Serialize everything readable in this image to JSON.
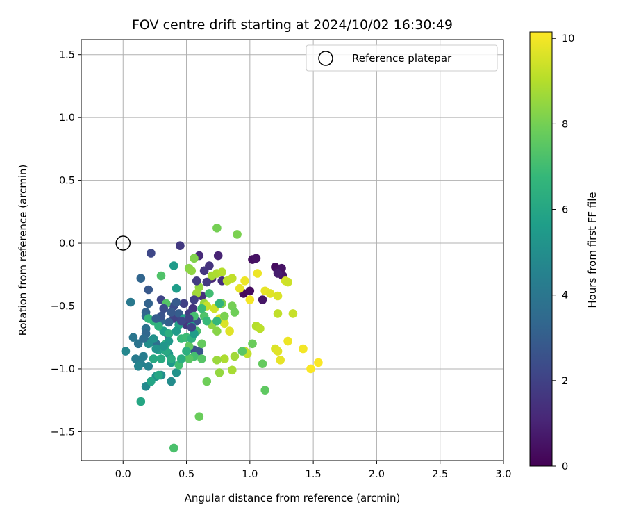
{
  "chart_data": {
    "type": "scatter",
    "title": "FOV centre drift starting at 2024/10/02 16:30:49",
    "xlabel": "Angular distance from reference (arcmin)",
    "ylabel": "Rotation from reference (arcmin)",
    "xlim": [
      -0.33,
      3.0
    ],
    "ylim": [
      -1.73,
      1.62
    ],
    "xticks": [
      0.0,
      0.5,
      1.0,
      1.5,
      2.0,
      2.5,
      3.0
    ],
    "xtick_labels": [
      "0.0",
      "0.5",
      "1.0",
      "1.5",
      "2.0",
      "2.5",
      "3.0"
    ],
    "yticks": [
      -1.5,
      -1.0,
      -0.5,
      0.0,
      0.5,
      1.0,
      1.5
    ],
    "ytick_labels": [
      "−1.5",
      "−1.0",
      "−0.5",
      "0.0",
      "0.5",
      "1.0",
      "1.5"
    ],
    "grid": true,
    "legend": {
      "placement": "top-right",
      "entries": [
        "Reference platepar"
      ]
    },
    "colormap": "viridis",
    "colorbar": {
      "label": "Hours from first FF file",
      "range": [
        0,
        10.15
      ],
      "ticks": [
        0,
        2,
        4,
        6,
        8,
        10
      ],
      "tick_labels": [
        "0",
        "2",
        "4",
        "6",
        "8",
        "10"
      ]
    },
    "reference": {
      "x": 0.0,
      "y": 0.0
    },
    "points": [
      [
        0.95,
        -0.4,
        0.2
      ],
      [
        1.0,
        -0.38,
        0.3
      ],
      [
        1.02,
        -0.13,
        0.4
      ],
      [
        1.05,
        -0.12,
        0.5
      ],
      [
        1.1,
        -0.45,
        0.6
      ],
      [
        1.2,
        -0.19,
        0.3
      ],
      [
        1.22,
        -0.22,
        0.4
      ],
      [
        1.25,
        -0.2,
        0.5
      ],
      [
        1.26,
        -0.26,
        0.6
      ],
      [
        1.22,
        -0.24,
        0.8
      ],
      [
        0.75,
        -0.1,
        1.0
      ],
      [
        0.7,
        -0.28,
        1.1
      ],
      [
        0.6,
        -0.1,
        1.2
      ],
      [
        0.78,
        -0.3,
        1.3
      ],
      [
        0.62,
        -0.42,
        1.4
      ],
      [
        0.55,
        -0.52,
        1.5
      ],
      [
        0.5,
        -0.65,
        1.6
      ],
      [
        0.45,
        -0.02,
        1.7
      ],
      [
        0.52,
        -0.56,
        1.8
      ],
      [
        0.48,
        -0.48,
        1.9
      ],
      [
        0.4,
        -0.6,
        2.0
      ],
      [
        0.3,
        -0.45,
        2.1
      ],
      [
        0.22,
        -0.08,
        2.2
      ],
      [
        0.35,
        -0.72,
        2.3
      ],
      [
        0.4,
        -0.5,
        2.4
      ],
      [
        0.58,
        -0.62,
        2.5
      ],
      [
        0.56,
        -0.85,
        2.6
      ],
      [
        0.6,
        -0.86,
        2.7
      ],
      [
        0.2,
        -0.37,
        2.8
      ],
      [
        0.42,
        -0.47,
        2.9
      ],
      [
        0.44,
        -0.56,
        3.0
      ],
      [
        0.36,
        -0.63,
        3.1
      ],
      [
        0.18,
        -0.55,
        3.2
      ],
      [
        0.14,
        -0.28,
        3.3
      ],
      [
        0.18,
        -0.58,
        3.4
      ],
      [
        0.3,
        -0.62,
        3.5
      ],
      [
        0.22,
        -0.78,
        3.6
      ],
      [
        0.26,
        -0.8,
        3.7
      ],
      [
        0.18,
        -0.68,
        3.8
      ],
      [
        0.12,
        -0.8,
        3.9
      ],
      [
        0.08,
        -0.75,
        4.0
      ],
      [
        0.06,
        -0.47,
        4.1
      ],
      [
        0.1,
        -0.92,
        4.2
      ],
      [
        0.16,
        -0.9,
        4.3
      ],
      [
        0.14,
        -0.96,
        4.4
      ],
      [
        0.2,
        -0.98,
        4.5
      ],
      [
        0.12,
        -0.98,
        4.6
      ],
      [
        0.02,
        -0.86,
        4.7
      ],
      [
        0.18,
        -1.14,
        4.8
      ],
      [
        0.38,
        -1.1,
        4.9
      ],
      [
        0.3,
        -1.05,
        5.0
      ],
      [
        0.26,
        -1.06,
        5.1
      ],
      [
        0.42,
        -1.03,
        5.2
      ],
      [
        0.36,
        -0.88,
        5.3
      ],
      [
        0.38,
        -0.95,
        5.4
      ],
      [
        0.4,
        -0.18,
        5.5
      ],
      [
        0.42,
        -0.36,
        5.6
      ],
      [
        0.32,
        -0.7,
        5.7
      ],
      [
        0.28,
        -0.85,
        5.8
      ],
      [
        0.22,
        -1.1,
        5.9
      ],
      [
        0.14,
        -1.26,
        6.0
      ],
      [
        0.24,
        -0.92,
        6.1
      ],
      [
        0.3,
        -0.92,
        6.2
      ],
      [
        0.36,
        -0.72,
        6.3
      ],
      [
        0.34,
        -0.8,
        6.4
      ],
      [
        0.28,
        -0.66,
        6.5
      ],
      [
        0.24,
        -0.62,
        6.6
      ],
      [
        0.2,
        -0.6,
        6.7
      ],
      [
        0.46,
        -0.76,
        6.8
      ],
      [
        0.5,
        -0.75,
        6.9
      ],
      [
        0.44,
        -0.97,
        7.0
      ],
      [
        0.56,
        -0.9,
        7.1
      ],
      [
        0.4,
        -1.63,
        7.2
      ],
      [
        0.3,
        -0.26,
        7.3
      ],
      [
        0.34,
        -0.48,
        7.4
      ],
      [
        0.52,
        -0.92,
        7.5
      ],
      [
        0.52,
        -0.82,
        7.6
      ],
      [
        0.62,
        -0.8,
        7.7
      ],
      [
        0.6,
        -1.38,
        7.8
      ],
      [
        0.66,
        -1.1,
        7.9
      ],
      [
        0.74,
        0.12,
        8.0
      ],
      [
        0.9,
        0.07,
        8.1
      ],
      [
        0.56,
        -0.12,
        8.2
      ],
      [
        0.52,
        -0.2,
        8.3
      ],
      [
        0.54,
        -0.22,
        8.4
      ],
      [
        0.6,
        -0.35,
        8.5
      ],
      [
        0.64,
        -0.48,
        8.6
      ],
      [
        0.58,
        -0.4,
        8.7
      ],
      [
        0.7,
        -0.26,
        8.8
      ],
      [
        0.74,
        -0.24,
        8.9
      ],
      [
        0.78,
        -0.23,
        9.0
      ],
      [
        0.82,
        -0.3,
        9.1
      ],
      [
        0.86,
        -0.28,
        9.2
      ],
      [
        0.66,
        -0.5,
        9.3
      ],
      [
        0.72,
        -0.52,
        9.4
      ],
      [
        0.76,
        -0.6,
        9.5
      ],
      [
        0.8,
        -0.64,
        9.6
      ],
      [
        0.84,
        -0.7,
        9.7
      ],
      [
        0.92,
        -0.36,
        9.8
      ],
      [
        0.96,
        -0.3,
        9.9
      ],
      [
        1.0,
        -0.45,
        10.0
      ],
      [
        1.06,
        -0.24,
        9.9
      ],
      [
        1.12,
        -0.38,
        9.8
      ],
      [
        1.16,
        -0.4,
        9.7
      ],
      [
        1.22,
        -0.42,
        9.6
      ],
      [
        1.28,
        -0.3,
        9.5
      ],
      [
        1.3,
        -0.31,
        9.4
      ],
      [
        1.2,
        -0.84,
        9.6
      ],
      [
        1.22,
        -0.86,
        9.7
      ],
      [
        1.24,
        -0.93,
        9.8
      ],
      [
        1.3,
        -0.78,
        9.9
      ],
      [
        1.42,
        -0.84,
        10.0
      ],
      [
        1.48,
        -1.0,
        10.1
      ],
      [
        1.54,
        -0.95,
        10.1
      ],
      [
        1.22,
        -0.56,
        9.2
      ],
      [
        1.34,
        -0.56,
        9.3
      ],
      [
        1.05,
        -0.66,
        9.0
      ],
      [
        1.08,
        -0.68,
        9.1
      ],
      [
        0.98,
        -0.88,
        9.2
      ],
      [
        0.96,
        -0.86,
        9.3
      ],
      [
        0.86,
        -1.01,
        8.8
      ],
      [
        0.88,
        -0.9,
        8.7
      ],
      [
        0.8,
        -0.92,
        8.9
      ],
      [
        0.76,
        -1.03,
        8.5
      ],
      [
        0.74,
        -0.93,
        8.6
      ],
      [
        0.7,
        -0.65,
        8.4
      ],
      [
        0.74,
        -0.7,
        8.3
      ],
      [
        0.78,
        -0.48,
        8.2
      ],
      [
        0.8,
        -0.58,
        8.1
      ],
      [
        0.86,
        -0.5,
        8.0
      ],
      [
        0.88,
        -0.55,
        7.9
      ],
      [
        1.02,
        -0.8,
        7.8
      ],
      [
        1.1,
        -0.96,
        7.7
      ],
      [
        1.12,
        -1.17,
        7.6
      ],
      [
        0.94,
        -0.86,
        7.5
      ],
      [
        0.62,
        -0.92,
        7.4
      ],
      [
        0.64,
        -0.58,
        7.3
      ],
      [
        0.58,
        -0.7,
        7.2
      ],
      [
        0.56,
        -0.58,
        7.1
      ],
      [
        0.68,
        -0.4,
        7.0
      ],
      [
        0.62,
        -0.52,
        6.9
      ],
      [
        0.66,
        -0.62,
        6.8
      ],
      [
        0.74,
        -0.62,
        6.7
      ],
      [
        0.76,
        -0.48,
        6.6
      ],
      [
        0.54,
        -0.76,
        6.5
      ],
      [
        0.5,
        -0.86,
        6.4
      ],
      [
        0.46,
        -0.92,
        6.3
      ],
      [
        0.38,
        -0.92,
        6.2
      ],
      [
        0.34,
        -0.86,
        6.1
      ],
      [
        0.28,
        -1.05,
        6.0
      ],
      [
        0.44,
        -0.65,
        5.9
      ],
      [
        0.48,
        -0.6,
        5.8
      ],
      [
        0.54,
        -0.66,
        5.7
      ],
      [
        0.56,
        -0.72,
        5.6
      ],
      [
        0.42,
        -0.7,
        5.5
      ],
      [
        0.36,
        -0.78,
        5.4
      ],
      [
        0.32,
        -0.82,
        5.3
      ],
      [
        0.26,
        -0.84,
        5.2
      ],
      [
        0.24,
        -0.76,
        5.1
      ],
      [
        0.2,
        -0.8,
        5.0
      ],
      [
        0.46,
        -0.62,
        2.2
      ],
      [
        0.52,
        -0.6,
        2.0
      ],
      [
        0.54,
        -0.67,
        2.1
      ],
      [
        0.56,
        -0.45,
        1.9
      ],
      [
        0.58,
        -0.3,
        1.8
      ],
      [
        0.64,
        -0.22,
        1.6
      ],
      [
        0.66,
        -0.31,
        1.7
      ],
      [
        0.68,
        -0.18,
        1.5
      ],
      [
        0.32,
        -0.52,
        2.4
      ],
      [
        0.3,
        -0.58,
        2.6
      ],
      [
        0.38,
        -0.55,
        2.8
      ],
      [
        0.26,
        -0.6,
        3.0
      ],
      [
        0.2,
        -0.48,
        3.2
      ],
      [
        0.18,
        -0.72,
        3.4
      ],
      [
        0.16,
        -0.76,
        3.6
      ]
    ]
  }
}
